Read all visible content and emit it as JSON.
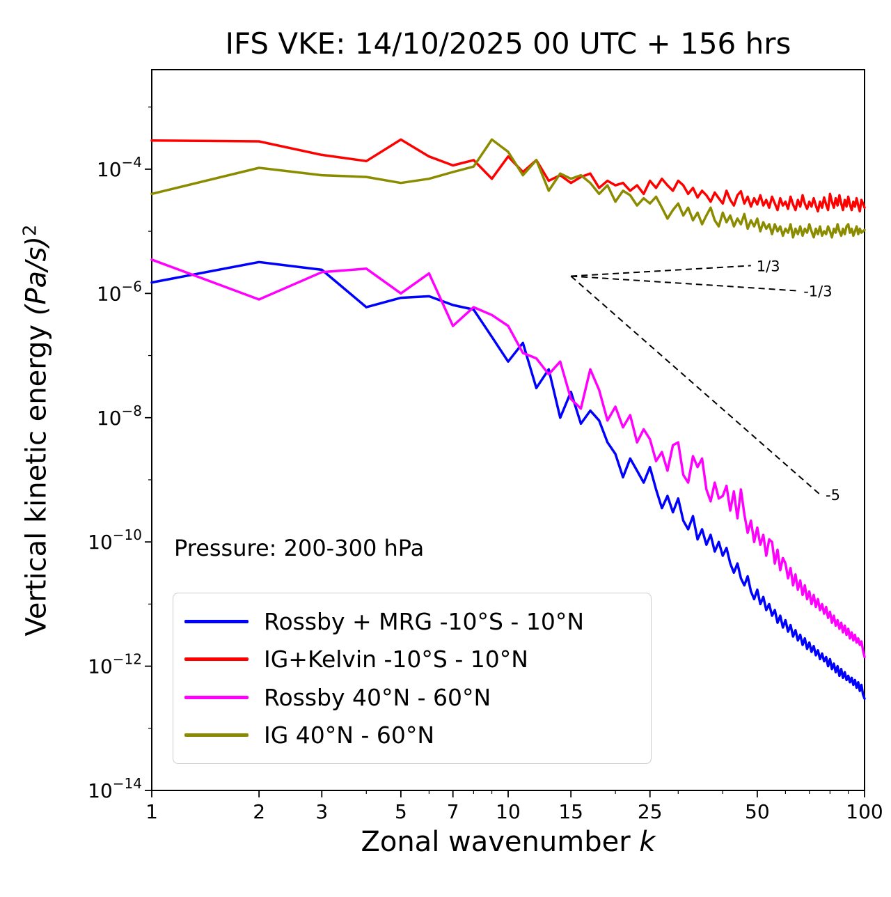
{
  "chart_data": {
    "type": "line",
    "title": "IFS VKE: 14/10/2025 00 UTC + 156 hrs",
    "xlabel": "Zonal wavenumber k",
    "xlabel_text": "Zonal wavenumber ",
    "xlabel_math": "k",
    "ylabel": "Vertical kinetic energy (Pa/s)²",
    "ylabel_text": "Vertical kinetic energy ",
    "ylabel_units": "(Pa/s)",
    "ylabel_exponent": "2",
    "annotation": "Pressure: 200-300 hPa",
    "x_scale": "log",
    "y_scale": "log",
    "grid": false,
    "legend_position": "lower left",
    "xlim": [
      1,
      100
    ],
    "ylim": [
      1e-14,
      0.004
    ],
    "x_ticks": [
      1,
      2,
      3,
      5,
      7,
      10,
      15,
      25,
      50,
      100
    ],
    "x_minor_ticks": [
      4,
      6,
      8,
      9,
      20,
      30,
      40,
      60,
      70,
      80,
      90
    ],
    "y_tick_exponents": [
      -4,
      -6,
      -8,
      -10,
      -12,
      -14
    ],
    "y_minor_exponents": [
      -3,
      -5,
      -7,
      -9,
      -11,
      -13
    ],
    "x_range": {
      "start": 1,
      "end": 100,
      "step": 1
    },
    "reference_lines": [
      {
        "label": "1/3",
        "slope": 0.333,
        "from": [
          15,
          1.9e-06
        ],
        "to": [
          48,
          2.8e-06
        ]
      },
      {
        "label": "-1/3",
        "slope": -0.333,
        "from": [
          15,
          1.9e-06
        ],
        "to": [
          65,
          1.1e-06
        ]
      },
      {
        "label": "-5",
        "slope": -5,
        "from": [
          15,
          1.9e-06
        ],
        "to": [
          75,
          5.8e-10
        ]
      }
    ],
    "series": [
      {
        "id": "rossby-mrg-tropics",
        "label": "Rossby + MRG -10°S - 10°N",
        "color": "#0000ff",
        "y": [
          1.5e-06,
          3.2e-06,
          2.4e-06,
          6e-07,
          8.5e-07,
          9e-07,
          6.5e-07,
          5.5e-07,
          2e-07,
          8e-08,
          1.6e-07,
          3e-08,
          6e-08,
          1e-08,
          2.6e-08,
          8e-09,
          1.3e-08,
          9e-09,
          4e-09,
          2.6e-09,
          1.1e-09,
          2.2e-09,
          1.4e-09,
          9e-10,
          1.6e-09,
          7e-10,
          3.5e-10,
          5.5e-10,
          3e-10,
          5e-10,
          2.2e-10,
          1.6e-10,
          2.6e-10,
          1.1e-10,
          1.6e-10,
          9e-11,
          1.3e-10,
          7e-11,
          1e-10,
          6e-11,
          8e-11,
          4.5e-11,
          3.2e-11,
          4.5e-11,
          2.6e-11,
          2e-11,
          2.8e-11,
          1.6e-11,
          1.2e-11,
          1.7e-11,
          1e-11,
          1.3e-11,
          8e-12,
          1e-11,
          6.5e-12,
          8e-12,
          5e-12,
          6.5e-12,
          4.2e-12,
          5.5e-12,
          3.6e-12,
          4.6e-12,
          3e-12,
          3.8e-12,
          2.6e-12,
          3.2e-12,
          2.2e-12,
          2.8e-12,
          1.9e-12,
          2.4e-12,
          1.7e-12,
          2.1e-12,
          1.5e-12,
          1.8e-12,
          1.3e-12,
          1.6e-12,
          1.2e-12,
          1.4e-12,
          1e-12,
          1.3e-12,
          9e-13,
          1.1e-12,
          8e-13,
          1e-12,
          7e-13,
          9e-13,
          6.5e-13,
          8e-13,
          6e-13,
          7e-13,
          5.5e-13,
          6.5e-13,
          5e-13,
          6e-13,
          4.5e-13,
          5.5e-13,
          4e-13,
          5e-13,
          3.5e-13,
          3e-13
        ]
      },
      {
        "id": "ig-kelvin-tropics",
        "label": "IG+Kelvin -10°S - 10°N",
        "color": "#ff0000",
        "y": [
          0.00029,
          0.00028,
          0.00017,
          0.000135,
          0.0003,
          0.00016,
          0.000115,
          0.00014,
          7e-05,
          0.00016,
          9e-05,
          0.00014,
          6.5e-05,
          8e-05,
          6e-05,
          7.5e-05,
          8.5e-05,
          5e-05,
          6.5e-05,
          5.5e-05,
          6e-05,
          4.5e-05,
          5.5e-05,
          4e-05,
          6.5e-05,
          5e-05,
          7e-05,
          5.5e-05,
          4.5e-05,
          6.5e-05,
          5.5e-05,
          4e-05,
          5e-05,
          3.5e-05,
          4.5e-05,
          3.8e-05,
          3e-05,
          4.2e-05,
          3.4e-05,
          2.8e-05,
          4.5e-05,
          3.2e-05,
          2.6e-05,
          3.8e-05,
          4.4e-05,
          2.8e-05,
          3.6e-05,
          2.5e-05,
          3.4e-05,
          2.7e-05,
          3.8e-05,
          2.6e-05,
          3.2e-05,
          2.4e-05,
          3.6e-05,
          2.8e-05,
          2.2e-05,
          3.4e-05,
          2.6e-05,
          3e-05,
          2.3e-05,
          3.6e-05,
          2.7e-05,
          2.2e-05,
          3.2e-05,
          2.5e-05,
          3.8e-05,
          2.8e-05,
          2.3e-05,
          3e-05,
          2.5e-05,
          3.4e-05,
          2.6e-05,
          2.1e-05,
          3e-05,
          2.4e-05,
          3.5e-05,
          2.7e-05,
          2.2e-05,
          4e-05,
          3e-05,
          2.4e-05,
          3.4e-05,
          2.6e-05,
          3.8e-05,
          2.8e-05,
          2.2e-05,
          3.2e-05,
          2.5e-05,
          3.6e-05,
          2.7e-05,
          2.2e-05,
          3e-05,
          2.5e-05,
          3.4e-05,
          2.6e-05,
          2.1e-05,
          3.2e-05,
          2.8e-05,
          2.4e-05
        ]
      },
      {
        "id": "rossby-midlat",
        "label": "Rossby 40°N - 60°N",
        "color": "#ff00ff",
        "y": [
          3.5e-06,
          8e-07,
          2.2e-06,
          2.5e-06,
          1e-06,
          2.1e-06,
          3e-07,
          6e-07,
          4.5e-07,
          3e-07,
          1.1e-07,
          9e-08,
          5e-08,
          8e-08,
          2e-08,
          1.4e-08,
          6e-08,
          2.8e-08,
          9e-09,
          1.5e-08,
          7e-09,
          1.1e-08,
          4e-09,
          6.5e-09,
          4.5e-09,
          2e-09,
          2.8e-09,
          1.4e-09,
          3.6e-09,
          4e-09,
          1.2e-09,
          9e-10,
          2.4e-09,
          1.6e-09,
          2.2e-09,
          7e-10,
          4.5e-10,
          9e-10,
          5e-10,
          5.5e-10,
          8e-10,
          3.2e-10,
          6.5e-10,
          2.4e-10,
          7e-10,
          2.8e-10,
          1.4e-10,
          2.2e-10,
          1e-10,
          1.7e-10,
          9e-11,
          1.3e-10,
          6e-11,
          1.1e-10,
          1e-10,
          4.5e-11,
          7.5e-11,
          3.5e-11,
          5.5e-11,
          4.5e-11,
          2.6e-11,
          3.8e-11,
          2e-11,
          3e-11,
          1.7e-11,
          2.4e-11,
          1.4e-11,
          2e-11,
          1.2e-11,
          1.6e-11,
          1e-11,
          1.4e-11,
          9e-12,
          1.2e-11,
          8e-12,
          1e-11,
          7e-12,
          9e-12,
          6e-12,
          7.5e-12,
          5e-12,
          6.5e-12,
          4.5e-12,
          5.5e-12,
          4e-12,
          5e-12,
          3.5e-12,
          4.5e-12,
          3.2e-12,
          4e-12,
          2.8e-12,
          3.5e-12,
          2.6e-12,
          3.2e-12,
          2.4e-12,
          2.8e-12,
          2.2e-12,
          2.5e-12,
          1.8e-12,
          1.4e-12
        ]
      },
      {
        "id": "ig-midlat",
        "label": "IG 40°N - 60°N",
        "color": "#8b8b00",
        "y": [
          4e-05,
          0.000105,
          8e-05,
          7.5e-05,
          6e-05,
          7e-05,
          9e-05,
          0.00011,
          0.0003,
          0.00019,
          8e-05,
          0.00014,
          4.5e-05,
          8.5e-05,
          7e-05,
          8e-05,
          6e-05,
          4e-05,
          5.5e-05,
          3e-05,
          4.5e-05,
          3.8e-05,
          2.6e-05,
          3.4e-05,
          2.8e-05,
          3.6e-05,
          2.4e-05,
          1.6e-05,
          2.2e-05,
          2.8e-05,
          1.8e-05,
          2.4e-05,
          1.5e-05,
          2e-05,
          1.3e-05,
          1.8e-05,
          2.4e-05,
          1.5e-05,
          1.2e-05,
          2e-05,
          1.4e-05,
          1.8e-05,
          1.2e-05,
          1.6e-05,
          1.3e-05,
          1.9e-05,
          1.1e-05,
          1.5e-05,
          1.2e-05,
          1.6e-05,
          1e-05,
          1.4e-05,
          1.1e-05,
          1.3e-05,
          9e-06,
          1.3e-05,
          1e-05,
          1.2e-05,
          8.5e-06,
          1.1e-05,
          9.5e-06,
          1.3e-05,
          8e-06,
          1.1e-05,
          9e-06,
          1.2e-05,
          8.5e-06,
          1.1e-05,
          9.5e-06,
          1.3e-05,
          1e-05,
          8e-06,
          1.1e-05,
          9e-06,
          1.2e-05,
          8.5e-06,
          1e-05,
          9e-06,
          1.2e-05,
          1e-05,
          8e-06,
          1.1e-05,
          9.5e-06,
          1.3e-05,
          1e-05,
          8.5e-06,
          1.1e-05,
          9e-06,
          1.2e-05,
          1.3e-05,
          9.5e-06,
          1.1e-05,
          8.5e-06,
          1e-05,
          1.2e-05,
          9e-06,
          1.1e-05,
          9.5e-06,
          1e-05,
          1.05e-05
        ]
      }
    ]
  }
}
